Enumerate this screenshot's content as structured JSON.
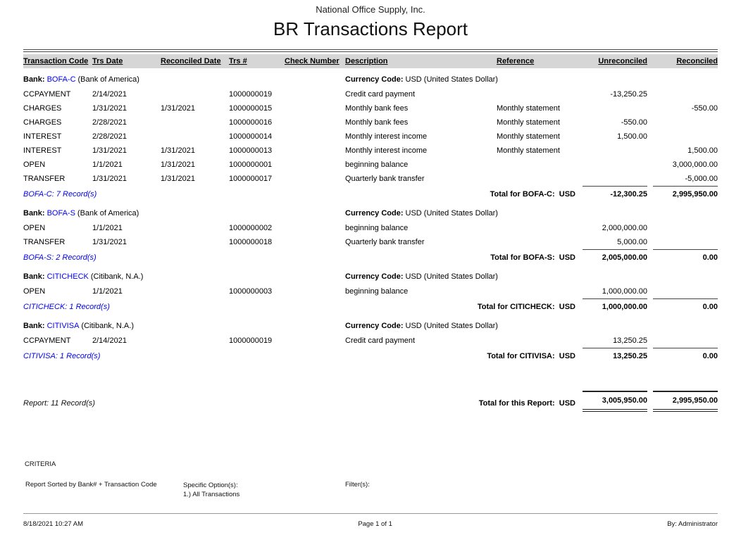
{
  "report": {
    "company": "National Office Supply, Inc.",
    "title": "BR Transactions Report",
    "columns": [
      "Transaction Code",
      "Trs Date",
      "Reconciled Date",
      "Trs #",
      "Check Number",
      "Description",
      "Reference",
      "Unreconciled",
      "Reconciled"
    ],
    "colors": {
      "link_blue": "#0000ee",
      "header_band": "#d6d6d6"
    },
    "groups": [
      {
        "bank_label": "Bank:",
        "bank_code": "BOFA-C",
        "bank_name": "(Bank of America)",
        "currency_label": "Currency Code:",
        "currency_value": "USD (United States Dollar)",
        "rows": [
          {
            "code": "CCPAYMENT",
            "trs_date": "2/14/2021",
            "reconciled_date": "",
            "trs_no": "1000000019",
            "check_number": "",
            "description": "Credit card payment",
            "reference": "",
            "unreconciled": "-13,250.25",
            "reconciled": ""
          },
          {
            "code": "CHARGES",
            "trs_date": "1/31/2021",
            "reconciled_date": "1/31/2021",
            "trs_no": "1000000015",
            "check_number": "",
            "description": "Monthly bank fees",
            "reference": "Monthly statement",
            "unreconciled": "",
            "reconciled": "-550.00"
          },
          {
            "code": "CHARGES",
            "trs_date": "2/28/2021",
            "reconciled_date": "",
            "trs_no": "1000000016",
            "check_number": "",
            "description": "Monthly bank fees",
            "reference": "Monthly statement",
            "unreconciled": "-550.00",
            "reconciled": ""
          },
          {
            "code": "INTEREST",
            "trs_date": "2/28/2021",
            "reconciled_date": "",
            "trs_no": "1000000014",
            "check_number": "",
            "description": "Monthly interest income",
            "reference": "Monthly statement",
            "unreconciled": "1,500.00",
            "reconciled": ""
          },
          {
            "code": "INTEREST",
            "trs_date": "1/31/2021",
            "reconciled_date": "1/31/2021",
            "trs_no": "1000000013",
            "check_number": "",
            "description": "Monthly interest income",
            "reference": "Monthly statement",
            "unreconciled": "",
            "reconciled": "1,500.00"
          },
          {
            "code": "OPEN",
            "trs_date": "1/1/2021",
            "reconciled_date": "1/31/2021",
            "trs_no": "1000000001",
            "check_number": "",
            "description": "beginning balance",
            "reference": "",
            "unreconciled": "",
            "reconciled": "3,000,000.00"
          },
          {
            "code": "TRANSFER",
            "trs_date": "1/31/2021",
            "reconciled_date": "1/31/2021",
            "trs_no": "1000000017",
            "check_number": "",
            "description": "Quarterly bank transfer",
            "reference": "",
            "unreconciled": "",
            "reconciled": "-5,000.00"
          }
        ],
        "record_count": "BOFA-C: 7 Record(s)",
        "total_label": "Total for BOFA-C:  USD",
        "total_unreconciled": "-12,300.25",
        "total_reconciled": "2,995,950.00"
      },
      {
        "bank_label": "Bank:",
        "bank_code": "BOFA-S",
        "bank_name": "(Bank of America)",
        "currency_label": "Currency Code:",
        "currency_value": "USD (United States Dollar)",
        "rows": [
          {
            "code": "OPEN",
            "trs_date": "1/1/2021",
            "reconciled_date": "",
            "trs_no": "1000000002",
            "check_number": "",
            "description": "beginning balance",
            "reference": "",
            "unreconciled": "2,000,000.00",
            "reconciled": ""
          },
          {
            "code": "TRANSFER",
            "trs_date": "1/31/2021",
            "reconciled_date": "",
            "trs_no": "1000000018",
            "check_number": "",
            "description": "Quarterly bank transfer",
            "reference": "",
            "unreconciled": "5,000.00",
            "reconciled": ""
          }
        ],
        "record_count": "BOFA-S: 2 Record(s)",
        "total_label": "Total for BOFA-S:  USD",
        "total_unreconciled": "2,005,000.00",
        "total_reconciled": "0.00"
      },
      {
        "bank_label": "Bank:",
        "bank_code": "CITICHECK",
        "bank_name": "(Citibank, N.A.)",
        "currency_label": "Currency Code:",
        "currency_value": "USD (United States Dollar)",
        "rows": [
          {
            "code": "OPEN",
            "trs_date": "1/1/2021",
            "reconciled_date": "",
            "trs_no": "1000000003",
            "check_number": "",
            "description": "beginning balance",
            "reference": "",
            "unreconciled": "1,000,000.00",
            "reconciled": ""
          }
        ],
        "record_count": "CITICHECK: 1 Record(s)",
        "total_label": "Total for CITICHECK:  USD",
        "total_unreconciled": "1,000,000.00",
        "total_reconciled": "0.00"
      },
      {
        "bank_label": "Bank:",
        "bank_code": "CITIVISA",
        "bank_name": "(Citibank, N.A.)",
        "currency_label": "Currency Code:",
        "currency_value": "USD (United States Dollar)",
        "rows": [
          {
            "code": "CCPAYMENT",
            "trs_date": "2/14/2021",
            "reconciled_date": "",
            "trs_no": "1000000019",
            "check_number": "",
            "description": "Credit card payment",
            "reference": "",
            "unreconciled": "13,250.25",
            "reconciled": ""
          }
        ],
        "record_count": "CITIVISA: 1 Record(s)",
        "total_label": "Total for CITIVISA:  USD",
        "total_unreconciled": "13,250.25",
        "total_reconciled": "0.00"
      }
    ],
    "summary": {
      "record_count": "Report: 11 Record(s)",
      "total_label": "Total for this Report:  USD",
      "unreconciled": "3,005,950.00",
      "reconciled": "2,995,950.00"
    },
    "criteria": {
      "heading": "CRITERIA",
      "sorted_by": "Report Sorted by Bank# + Transaction Code",
      "specific_options_label": "Specific Option(s):",
      "specific_option_1": "1.) All Transactions",
      "filters_label": "Filter(s):"
    },
    "footer": {
      "datetime": "8/18/2021 10:27 AM",
      "page": "Page 1 of 1",
      "by": "By: Administrator"
    }
  }
}
